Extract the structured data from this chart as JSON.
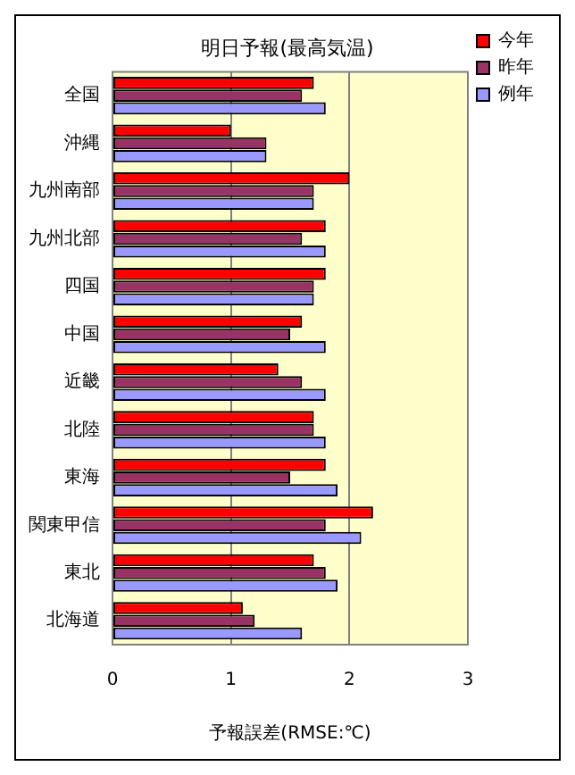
{
  "chart_data": {
    "type": "bar",
    "orientation": "horizontal",
    "title": "明日予報(最高気温)",
    "xlabel": "予報誤差(RMSE:℃)",
    "categories": [
      "全国",
      "沖縄",
      "九州南部",
      "九州北部",
      "四国",
      "中国",
      "近畿",
      "北陸",
      "東海",
      "関東甲信",
      "東北",
      "北海道"
    ],
    "series": [
      {
        "name": "今年",
        "color": "#ff0000",
        "values": [
          1.7,
          1.0,
          2.0,
          1.8,
          1.8,
          1.6,
          1.4,
          1.7,
          1.8,
          2.2,
          1.7,
          1.1
        ]
      },
      {
        "name": "昨年",
        "color": "#993366",
        "values": [
          1.6,
          1.3,
          1.7,
          1.6,
          1.7,
          1.5,
          1.6,
          1.7,
          1.5,
          1.8,
          1.8,
          1.2
        ]
      },
      {
        "name": "例年",
        "color": "#9999ff",
        "values": [
          1.8,
          1.3,
          1.7,
          1.8,
          1.7,
          1.8,
          1.8,
          1.8,
          1.9,
          2.1,
          1.9,
          1.6
        ]
      }
    ],
    "xlim": [
      0,
      3
    ],
    "xticks": [
      0,
      1,
      2,
      3
    ],
    "grid": "x",
    "legend": "top right"
  }
}
